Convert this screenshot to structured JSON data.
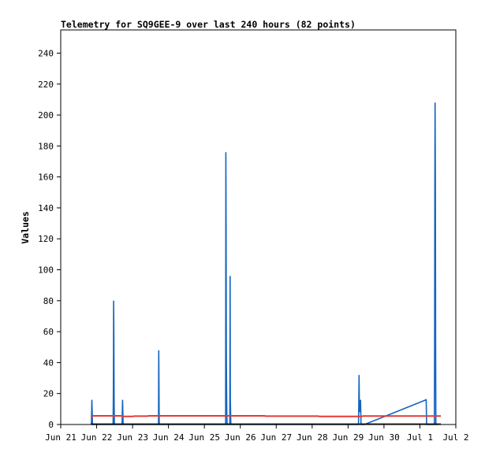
{
  "chart_data": {
    "type": "line",
    "title": "Telemetry for SQ9GEE-9 over last 240 hours (82 points)",
    "xlabel": "",
    "ylabel": "Values",
    "ylim": [
      0,
      255
    ],
    "yticks": [
      0,
      20,
      40,
      60,
      80,
      100,
      120,
      140,
      160,
      180,
      200,
      220,
      240
    ],
    "xlim": [
      "2025-06-21T00:00",
      "2025-07-02T00:00"
    ],
    "xticks": [
      {
        "label": "Jun 21",
        "at": "2025-06-21T00:00"
      },
      {
        "label": "Jun 22",
        "at": "2025-06-22T00:00"
      },
      {
        "label": "Jun 23",
        "at": "2025-06-23T00:00"
      },
      {
        "label": "Jun 24",
        "at": "2025-06-24T00:00"
      },
      {
        "label": "Jun 25",
        "at": "2025-06-25T00:00"
      },
      {
        "label": "Jun 26",
        "at": "2025-06-26T00:00"
      },
      {
        "label": "Jun 27",
        "at": "2025-06-27T00:00"
      },
      {
        "label": "Jun 28",
        "at": "2025-06-28T00:00"
      },
      {
        "label": "Jun 29",
        "at": "2025-06-29T00:00"
      },
      {
        "label": "Jun 30",
        "at": "2025-06-30T00:00"
      },
      {
        "label": "Jul 1",
        "at": "2025-07-01T00:00"
      },
      {
        "label": "Jul 2",
        "at": "2025-07-02T00:00"
      }
    ],
    "grid": false,
    "series": [
      {
        "color": "#1565c0",
        "points": [
          [
            "2025-06-21T20:30",
            0
          ],
          [
            "2025-06-21T20:40",
            8
          ],
          [
            "2025-06-21T20:50",
            16
          ],
          [
            "2025-06-21T21:00",
            8
          ],
          [
            "2025-06-21T21:10",
            0
          ],
          [
            "2025-06-22T11:00",
            0
          ],
          [
            "2025-06-22T11:10",
            16
          ],
          [
            "2025-06-22T11:15",
            40
          ],
          [
            "2025-06-22T11:20",
            80
          ],
          [
            "2025-06-22T11:30",
            56
          ],
          [
            "2025-06-22T11:40",
            16
          ],
          [
            "2025-06-22T11:50",
            0
          ],
          [
            "2025-06-22T17:00",
            0
          ],
          [
            "2025-06-22T17:10",
            8
          ],
          [
            "2025-06-22T17:20",
            16
          ],
          [
            "2025-06-22T17:30",
            8
          ],
          [
            "2025-06-22T17:40",
            0
          ],
          [
            "2025-06-23T17:20",
            0
          ],
          [
            "2025-06-23T17:30",
            48
          ],
          [
            "2025-06-23T17:40",
            24
          ],
          [
            "2025-06-23T17:50",
            0
          ],
          [
            "2025-06-25T14:10",
            0
          ],
          [
            "2025-06-25T14:20",
            176
          ],
          [
            "2025-06-25T14:30",
            128
          ],
          [
            "2025-06-25T14:40",
            48
          ],
          [
            "2025-06-25T14:50",
            24
          ],
          [
            "2025-06-25T15:00",
            8
          ],
          [
            "2025-06-25T15:10",
            0
          ],
          [
            "2025-06-25T17:00",
            0
          ],
          [
            "2025-06-25T17:10",
            96
          ],
          [
            "2025-06-25T17:20",
            16
          ],
          [
            "2025-06-25T17:30",
            8
          ],
          [
            "2025-06-25T17:40",
            0
          ],
          [
            "2025-06-29T07:00",
            0
          ],
          [
            "2025-06-29T07:10",
            16
          ],
          [
            "2025-06-29T07:20",
            32
          ],
          [
            "2025-06-29T07:30",
            16
          ],
          [
            "2025-06-29T07:40",
            8
          ],
          [
            "2025-06-29T08:00",
            16
          ],
          [
            "2025-06-29T08:10",
            8
          ],
          [
            "2025-06-29T08:20",
            16
          ],
          [
            "2025-06-29T08:30",
            8
          ],
          [
            "2025-06-29T08:40",
            0
          ],
          [
            "2025-06-29T11:00",
            0
          ],
          [
            "2025-07-01T04:10",
            16
          ],
          [
            "2025-07-01T04:20",
            8
          ],
          [
            "2025-07-01T04:30",
            0
          ],
          [
            "2025-07-01T09:40",
            0
          ],
          [
            "2025-07-01T09:50",
            52
          ],
          [
            "2025-07-01T10:00",
            156
          ],
          [
            "2025-07-01T10:10",
            208
          ],
          [
            "2025-07-01T10:20",
            156
          ],
          [
            "2025-07-01T10:30",
            52
          ],
          [
            "2025-07-01T10:40",
            0
          ],
          [
            "2025-07-01T12:00",
            0
          ]
        ]
      },
      {
        "color": "#e53935",
        "points": [
          [
            "2025-06-21T20:00",
            5.6
          ],
          [
            "2025-06-22T16:00",
            5.6
          ],
          [
            "2025-06-22T18:00",
            5.2
          ],
          [
            "2025-06-23T00:00",
            5.2
          ],
          [
            "2025-06-23T01:00",
            5.4
          ],
          [
            "2025-06-23T10:00",
            5.4
          ],
          [
            "2025-06-23T11:00",
            5.6
          ],
          [
            "2025-06-26T16:00",
            5.6
          ],
          [
            "2025-06-26T17:00",
            5.4
          ],
          [
            "2025-06-28T04:00",
            5.4
          ],
          [
            "2025-06-28T05:00",
            5.2
          ],
          [
            "2025-06-29T09:00",
            5.2
          ],
          [
            "2025-06-29T10:00",
            5.5
          ],
          [
            "2025-07-01T14:00",
            5.5
          ]
        ]
      },
      {
        "color": "#111111",
        "points": [
          [
            "2025-06-21T20:00",
            0.2
          ],
          [
            "2025-07-01T14:00",
            0.2
          ]
        ]
      }
    ]
  }
}
